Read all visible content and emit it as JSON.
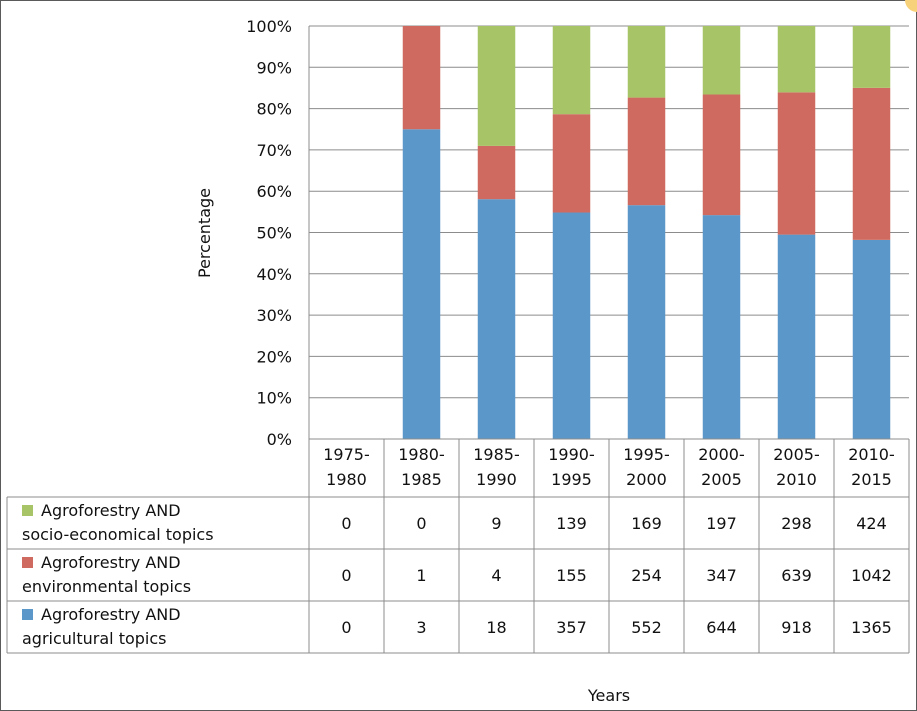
{
  "chart_data": {
    "type": "bar",
    "stacked": "percent",
    "y_axis_label": "Percentage",
    "x_axis_label": "Years",
    "y_ticks": [
      "0%",
      "10%",
      "20%",
      "30%",
      "40%",
      "50%",
      "60%",
      "70%",
      "80%",
      "90%",
      "100%"
    ],
    "ylim": [
      0,
      100
    ],
    "grid": true,
    "legend": "data-table-left",
    "categories": [
      [
        "1975-",
        "1980"
      ],
      [
        "1980-",
        "1985"
      ],
      [
        "1985-",
        "1990"
      ],
      [
        "1990-",
        "1995"
      ],
      [
        "1995-",
        "2000"
      ],
      [
        "2000-",
        "2005"
      ],
      [
        "2005-",
        "2010"
      ],
      [
        "2010-",
        "2015"
      ]
    ],
    "series": [
      {
        "name_lines": [
          "Agroforestry AND",
          "agricultural topics"
        ],
        "color": "#5b97c8",
        "values": [
          0,
          3,
          18,
          357,
          552,
          644,
          918,
          1365
        ],
        "value_labels": [
          "0",
          "3",
          "18",
          "357",
          "552",
          "644",
          "918",
          "1365"
        ]
      },
      {
        "name_lines": [
          "Agroforestry AND",
          "environmental topics"
        ],
        "color": "#cf6a60",
        "values": [
          0,
          1,
          4,
          155,
          254,
          347,
          639,
          1042
        ],
        "value_labels": [
          "0",
          "1",
          "4",
          "155",
          "254",
          "347",
          "639",
          "1042"
        ]
      },
      {
        "name_lines": [
          "Agroforestry AND",
          "socio-economical topics"
        ],
        "color": "#a7c466",
        "values": [
          0,
          0,
          9,
          139,
          169,
          197,
          298,
          424
        ],
        "value_labels": [
          "0",
          "0",
          "9",
          "139",
          "169",
          "197",
          "298",
          "424"
        ]
      }
    ],
    "table_row_order": [
      2,
      1,
      0
    ]
  }
}
